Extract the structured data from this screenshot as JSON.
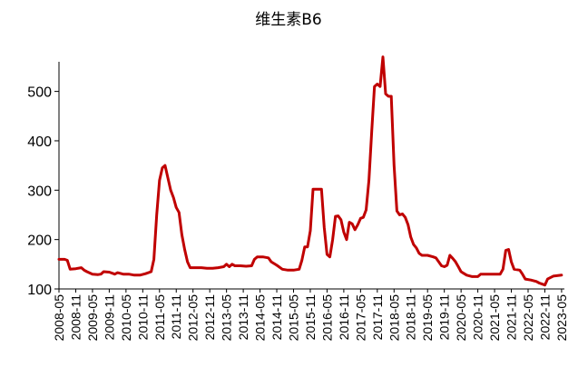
{
  "chart_data": {
    "type": "line",
    "title": "维生素B6",
    "xlabel": "",
    "ylabel": "",
    "ylim": [
      100,
      560
    ],
    "yticks": [
      100,
      200,
      300,
      400,
      500
    ],
    "xlim": [
      "2008-05",
      "2023-06"
    ],
    "xticks": [
      "2008-05",
      "2008-11",
      "2009-05",
      "2009-11",
      "2010-05",
      "2010-11",
      "2011-05",
      "2011-11",
      "2012-05",
      "2012-11",
      "2013-05",
      "2013-11",
      "2014-05",
      "2014-11",
      "2015-05",
      "2015-11",
      "2016-05",
      "2016-11",
      "2017-05",
      "2017-11",
      "2018-05",
      "2018-11",
      "2019-05",
      "2019-11",
      "2020-05",
      "2020-11",
      "2021-05",
      "2021-11",
      "2022-05",
      "2022-11",
      "2023-05"
    ],
    "grid": false,
    "series": [
      {
        "color": "#c00000",
        "points": [
          [
            "2008-05",
            160
          ],
          [
            "2008-07",
            160
          ],
          [
            "2008-08",
            158
          ],
          [
            "2008-09",
            140
          ],
          [
            "2008-11",
            141
          ],
          [
            "2009-01",
            143
          ],
          [
            "2009-02",
            138
          ],
          [
            "2009-03",
            135
          ],
          [
            "2009-05",
            130
          ],
          [
            "2009-07",
            129
          ],
          [
            "2009-08",
            130
          ],
          [
            "2009-09",
            135
          ],
          [
            "2009-11",
            134
          ],
          [
            "2010-01",
            130
          ],
          [
            "2010-02",
            133
          ],
          [
            "2010-04",
            130
          ],
          [
            "2010-06",
            130
          ],
          [
            "2010-08",
            128
          ],
          [
            "2010-10",
            128
          ],
          [
            "2010-12",
            131
          ],
          [
            "2011-02",
            135
          ],
          [
            "2011-03",
            160
          ],
          [
            "2011-04",
            250
          ],
          [
            "2011-05",
            320
          ],
          [
            "2011-06",
            345
          ],
          [
            "2011-07",
            350
          ],
          [
            "2011-08",
            325
          ],
          [
            "2011-09",
            300
          ],
          [
            "2011-10",
            285
          ],
          [
            "2011-11",
            265
          ],
          [
            "2011-12",
            255
          ],
          [
            "2012-01",
            210
          ],
          [
            "2012-02",
            180
          ],
          [
            "2012-03",
            155
          ],
          [
            "2012-04",
            143
          ],
          [
            "2012-06",
            143
          ],
          [
            "2012-08",
            143
          ],
          [
            "2012-10",
            142
          ],
          [
            "2012-12",
            142
          ],
          [
            "2013-02",
            143
          ],
          [
            "2013-04",
            145
          ],
          [
            "2013-05",
            150
          ],
          [
            "2013-06",
            145
          ],
          [
            "2013-07",
            150
          ],
          [
            "2013-08",
            147
          ],
          [
            "2013-10",
            147
          ],
          [
            "2013-12",
            146
          ],
          [
            "2014-02",
            147
          ],
          [
            "2014-03",
            160
          ],
          [
            "2014-04",
            165
          ],
          [
            "2014-06",
            165
          ],
          [
            "2014-08",
            163
          ],
          [
            "2014-09",
            155
          ],
          [
            "2014-11",
            148
          ],
          [
            "2015-01",
            140
          ],
          [
            "2015-03",
            138
          ],
          [
            "2015-05",
            138
          ],
          [
            "2015-07",
            140
          ],
          [
            "2015-08",
            158
          ],
          [
            "2015-09",
            185
          ],
          [
            "2015-10",
            185
          ],
          [
            "2015-11",
            218
          ],
          [
            "2015-12",
            302
          ],
          [
            "2016-02",
            302
          ],
          [
            "2016-03",
            302
          ],
          [
            "2016-04",
            225
          ],
          [
            "2016-05",
            170
          ],
          [
            "2016-06",
            165
          ],
          [
            "2016-07",
            200
          ],
          [
            "2016-08",
            247
          ],
          [
            "2016-09",
            248
          ],
          [
            "2016-10",
            240
          ],
          [
            "2016-11",
            215
          ],
          [
            "2016-12",
            200
          ],
          [
            "2017-01",
            235
          ],
          [
            "2017-02",
            232
          ],
          [
            "2017-03",
            220
          ],
          [
            "2017-04",
            230
          ],
          [
            "2017-05",
            243
          ],
          [
            "2017-06",
            245
          ],
          [
            "2017-07",
            260
          ],
          [
            "2017-08",
            320
          ],
          [
            "2017-09",
            420
          ],
          [
            "2017-10",
            510
          ],
          [
            "2017-11",
            515
          ],
          [
            "2017-12",
            510
          ],
          [
            "2018-01",
            570
          ],
          [
            "2018-02",
            495
          ],
          [
            "2018-03",
            490
          ],
          [
            "2018-04",
            490
          ],
          [
            "2018-05",
            350
          ],
          [
            "2018-06",
            258
          ],
          [
            "2018-07",
            250
          ],
          [
            "2018-08",
            252
          ],
          [
            "2018-09",
            245
          ],
          [
            "2018-10",
            230
          ],
          [
            "2018-11",
            205
          ],
          [
            "2018-12",
            190
          ],
          [
            "2019-01",
            183
          ],
          [
            "2019-02",
            172
          ],
          [
            "2019-03",
            168
          ],
          [
            "2019-05",
            168
          ],
          [
            "2019-07",
            165
          ],
          [
            "2019-08",
            163
          ],
          [
            "2019-09",
            155
          ],
          [
            "2019-10",
            147
          ],
          [
            "2019-11",
            145
          ],
          [
            "2019-12",
            148
          ],
          [
            "2020-01",
            168
          ],
          [
            "2020-02",
            162
          ],
          [
            "2020-03",
            155
          ],
          [
            "2020-04",
            145
          ],
          [
            "2020-05",
            135
          ],
          [
            "2020-07",
            128
          ],
          [
            "2020-09",
            125
          ],
          [
            "2020-11",
            125
          ],
          [
            "2020-12",
            130
          ],
          [
            "2021-01",
            130
          ],
          [
            "2021-03",
            130
          ],
          [
            "2021-05",
            130
          ],
          [
            "2021-07",
            130
          ],
          [
            "2021-08",
            140
          ],
          [
            "2021-09",
            178
          ],
          [
            "2021-10",
            180
          ],
          [
            "2021-11",
            155
          ],
          [
            "2021-12",
            140
          ],
          [
            "2022-02",
            138
          ],
          [
            "2022-03",
            130
          ],
          [
            "2022-04",
            120
          ],
          [
            "2022-06",
            118
          ],
          [
            "2022-08",
            115
          ],
          [
            "2022-09",
            112
          ],
          [
            "2022-10",
            110
          ],
          [
            "2022-11",
            108
          ],
          [
            "2022-12",
            120
          ],
          [
            "2023-02",
            126
          ],
          [
            "2023-05",
            128
          ]
        ]
      }
    ]
  }
}
